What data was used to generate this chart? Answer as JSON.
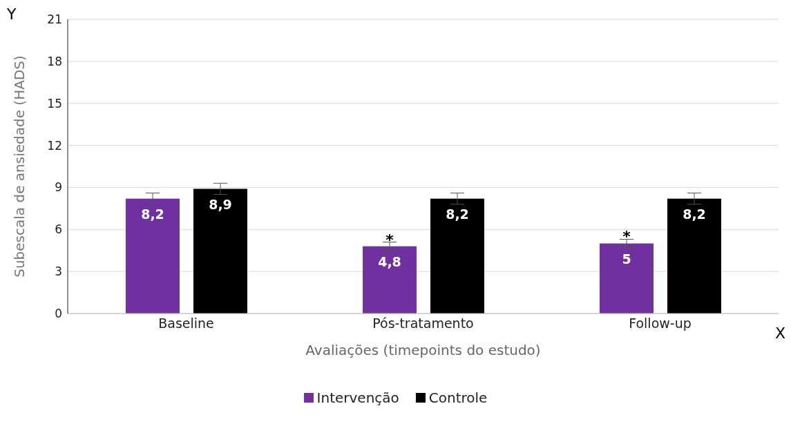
{
  "chart_data": {
    "type": "bar",
    "xlabel": "Avaliações (timepoints do estudo)",
    "ylabel": "Subescala de ansiedade (HADS)",
    "categories": [
      "Baseline",
      "Pós-tratamento",
      "Follow-up"
    ],
    "series": [
      {
        "name": "Intervenção",
        "color": "#7030a0",
        "values": [
          8.2,
          4.8,
          5
        ],
        "errors": [
          0.4,
          0.3,
          0.3
        ],
        "value_labels": [
          "8,2",
          "4,8",
          "5"
        ]
      },
      {
        "name": "Controle",
        "color": "#000000",
        "values": [
          8.9,
          8.2,
          8.2
        ],
        "errors": [
          0.4,
          0.4,
          0.4
        ],
        "value_labels": [
          "8,9",
          "8,2",
          "8,2"
        ]
      }
    ],
    "ylim": [
      0,
      21
    ],
    "yticks": [
      0,
      3,
      6,
      9,
      12,
      15,
      18,
      21
    ],
    "grid": "y",
    "legend": "bottom",
    "annotations": [
      "Y",
      "X",
      "*",
      "*"
    ]
  }
}
